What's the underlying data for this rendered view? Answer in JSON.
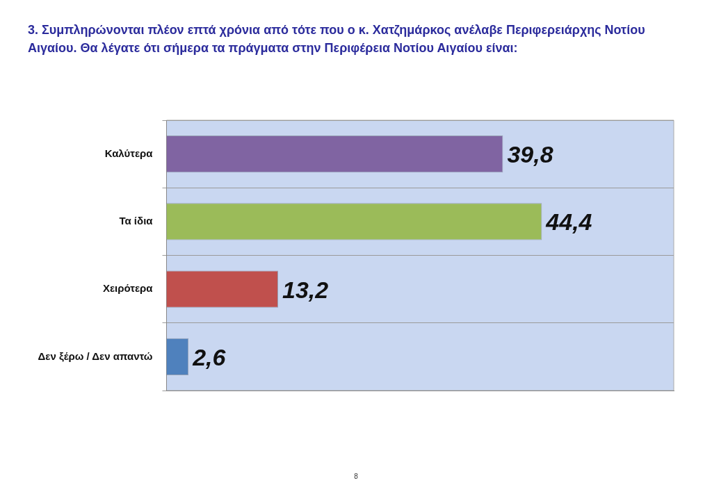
{
  "chart_data": {
    "type": "bar",
    "orientation": "horizontal",
    "title": "3. Συμπληρώνονται πλέον επτά χρόνια από τότε που ο κ. Χατζημάρκος ανέλαβε Περιφερειάρχης Νοτίου Αιγαίου. Θα λέγατε ότι σήμερα τα πράγματα στην Περιφέρεια Νοτίου Αιγαίου είναι:",
    "categories": [
      "Καλύτερα",
      "Τα ίδια",
      "Χειρότερα",
      "Δεν ξέρω / Δεν απαντώ"
    ],
    "values": [
      39.8,
      44.4,
      13.2,
      2.6
    ],
    "colors": [
      "#8064a2",
      "#9bbb59",
      "#c0504d",
      "#4f81bd"
    ],
    "value_labels": [
      "39,8",
      "44,4",
      "13,2",
      "2,6"
    ],
    "tick_labels": "y",
    "grid": "y",
    "legend": false,
    "annotations": [
      "8"
    ]
  }
}
